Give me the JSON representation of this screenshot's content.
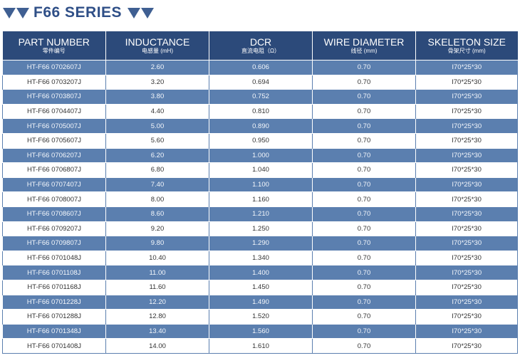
{
  "title": "F66 SERIES",
  "colors": {
    "header": "#2c4a7a",
    "stripe": "#5b7faf",
    "title": "#2f4f87"
  },
  "columns": [
    {
      "en": "PART NUMBER",
      "cn": "零件编号"
    },
    {
      "en": "INDUCTANCE",
      "cn": "电感量 (mH)"
    },
    {
      "en": "DCR",
      "cn": "直流电阻（Ω）"
    },
    {
      "en": "WIRE DIAMETER",
      "cn": "线径 (mm)"
    },
    {
      "en": "SKELETON SIZE",
      "cn": "骨架尺寸 (mm)"
    }
  ],
  "rows": [
    [
      "HT-F66 0702607J",
      "2.60",
      "0.606",
      "0.70",
      "I70*25*30"
    ],
    [
      "HT-F66 0703207J",
      "3.20",
      "0.694",
      "0.70",
      "I70*25*30"
    ],
    [
      "HT-F66 0703807J",
      "3.80",
      "0.752",
      "0.70",
      "I70*25*30"
    ],
    [
      "HT-F66 0704407J",
      "4.40",
      "0.810",
      "0.70",
      "I70*25*30"
    ],
    [
      "HT-F66 0705007J",
      "5.00",
      "0.890",
      "0.70",
      "I70*25*30"
    ],
    [
      "HT-F66 0705607J",
      "5.60",
      "0.950",
      "0.70",
      "I70*25*30"
    ],
    [
      "HT-F66 0706207J",
      "6.20",
      "1.000",
      "0.70",
      "I70*25*30"
    ],
    [
      "HT-F66 0706807J",
      "6.80",
      "1.040",
      "0.70",
      "I70*25*30"
    ],
    [
      "HT-F66 0707407J",
      "7.40",
      "1.100",
      "0.70",
      "I70*25*30"
    ],
    [
      "HT-F66 0708007J",
      "8.00",
      "1.160",
      "0.70",
      "I70*25*30"
    ],
    [
      "HT-F66 0708607J",
      "8.60",
      "1.210",
      "0.70",
      "I70*25*30"
    ],
    [
      "HT-F66 0709207J",
      "9.20",
      "1.250",
      "0.70",
      "I70*25*30"
    ],
    [
      "HT-F66 0709807J",
      "9.80",
      "1.290",
      "0.70",
      "I70*25*30"
    ],
    [
      "HT-F66 0701048J",
      "10.40",
      "1.340",
      "0.70",
      "I70*25*30"
    ],
    [
      "HT-F66 0701108J",
      "11.00",
      "1.400",
      "0.70",
      "I70*25*30"
    ],
    [
      "HT-F66 0701168J",
      "11.60",
      "1.450",
      "0.70",
      "I70*25*30"
    ],
    [
      "HT-F66 0701228J",
      "12.20",
      "1.490",
      "0.70",
      "I70*25*30"
    ],
    [
      "HT-F66 0701288J",
      "12.80",
      "1.520",
      "0.70",
      "I70*25*30"
    ],
    [
      "HT-F66 0701348J",
      "13.40",
      "1.560",
      "0.70",
      "I70*25*30"
    ],
    [
      "HT-F66 0701408J",
      "14.00",
      "1.610",
      "0.70",
      "I70*25*30"
    ]
  ]
}
